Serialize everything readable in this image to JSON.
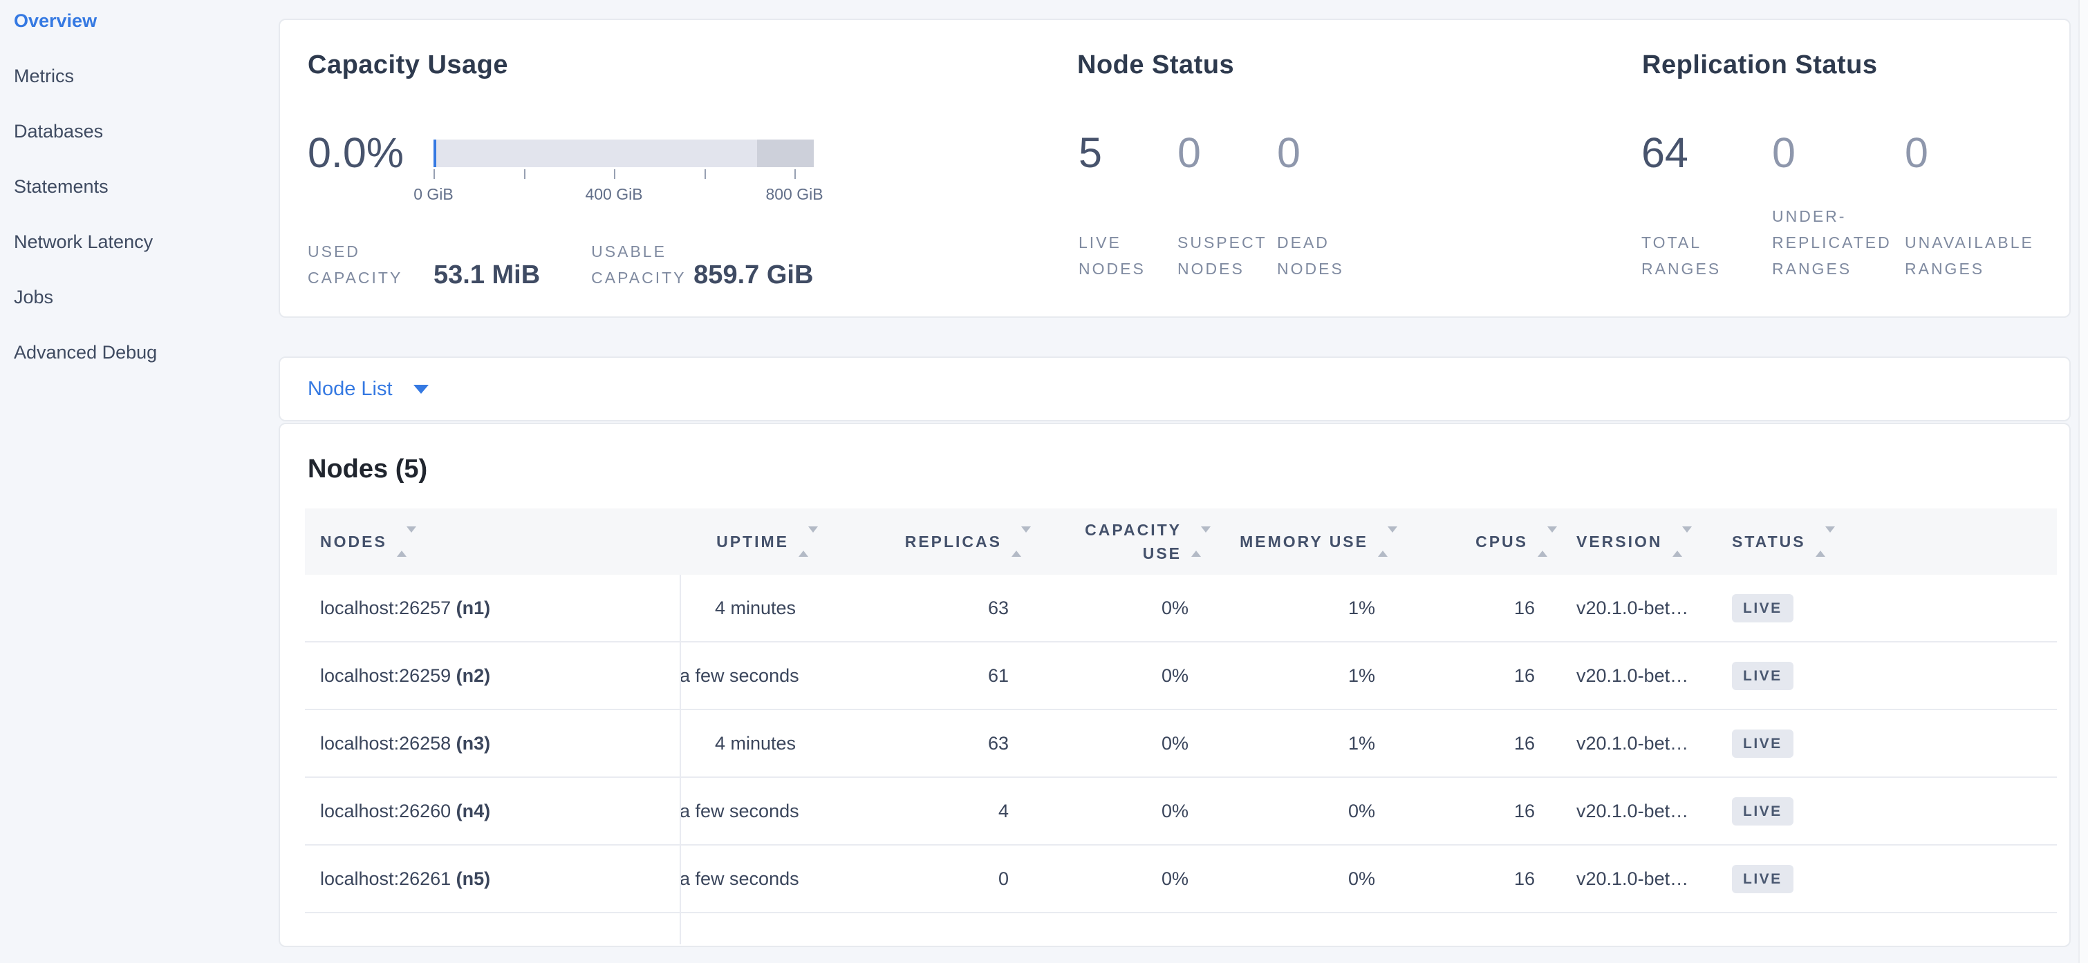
{
  "colors": {
    "accent_blue": "#3579e2",
    "text_dark": "#47536c",
    "text_muted": "#7f8aa0",
    "badge_bg": "#e5e8ef",
    "bar_track": "#e2e4ed",
    "bar_reserved": "#cdd0da"
  },
  "sidebar": {
    "items": [
      {
        "label": "Overview",
        "active": true
      },
      {
        "label": "Metrics",
        "active": false
      },
      {
        "label": "Databases",
        "active": false
      },
      {
        "label": "Statements",
        "active": false
      },
      {
        "label": "Network Latency",
        "active": false
      },
      {
        "label": "Jobs",
        "active": false
      },
      {
        "label": "Advanced Debug",
        "active": false
      }
    ]
  },
  "summary": {
    "capacity": {
      "title": "Capacity Usage",
      "percent_used": "0.0%",
      "gauge": {
        "tick_labels": [
          "0 GiB",
          "400 GiB",
          "800 GiB"
        ],
        "tick_count": 5,
        "axis_unit": "GiB",
        "reserved_segment_percent": 15
      },
      "stats": [
        {
          "label": "USED CAPACITY",
          "value": "53.1 MiB"
        },
        {
          "label": "USABLE CAPACITY",
          "value": "859.7 GiB"
        }
      ]
    },
    "node_status": {
      "title": "Node Status",
      "stats": [
        {
          "value": "5",
          "label": "LIVE NODES",
          "primary": true
        },
        {
          "value": "0",
          "label": "SUSPECT NODES",
          "primary": false
        },
        {
          "value": "0",
          "label": "DEAD NODES",
          "primary": false
        }
      ]
    },
    "replication_status": {
      "title": "Replication Status",
      "stats": [
        {
          "value": "64",
          "label": "TOTAL RANGES",
          "primary": true
        },
        {
          "value": "0",
          "label": "UNDER-REPLICATED RANGES",
          "primary": false
        },
        {
          "value": "0",
          "label": "UNAVAILABLE RANGES",
          "primary": false
        }
      ]
    }
  },
  "node_list": {
    "label": "Node List"
  },
  "nodes_table": {
    "title": "Nodes (5)",
    "headers": [
      {
        "label": "NODES",
        "align": "left"
      },
      {
        "label": "UPTIME",
        "align": "right"
      },
      {
        "label": "REPLICAS",
        "align": "right"
      },
      {
        "label": "CAPACITY USE",
        "align": "right"
      },
      {
        "label": "MEMORY USE",
        "align": "right"
      },
      {
        "label": "CPUS",
        "align": "right"
      },
      {
        "label": "VERSION",
        "align": "left"
      },
      {
        "label": "STATUS",
        "align": "left"
      }
    ],
    "rows": [
      {
        "address": "localhost:26257",
        "id": "(n1)",
        "uptime": "4 minutes",
        "replicas": "63",
        "capacity_use": "0%",
        "memory_use": "1%",
        "cpus": "16",
        "version": "v20.1.0-bet…",
        "status": "LIVE"
      },
      {
        "address": "localhost:26259",
        "id": "(n2)",
        "uptime": "a few seconds",
        "replicas": "61",
        "capacity_use": "0%",
        "memory_use": "1%",
        "cpus": "16",
        "version": "v20.1.0-bet…",
        "status": "LIVE"
      },
      {
        "address": "localhost:26258",
        "id": "(n3)",
        "uptime": "4 minutes",
        "replicas": "63",
        "capacity_use": "0%",
        "memory_use": "1%",
        "cpus": "16",
        "version": "v20.1.0-bet…",
        "status": "LIVE"
      },
      {
        "address": "localhost:26260",
        "id": "(n4)",
        "uptime": "a few seconds",
        "replicas": "4",
        "capacity_use": "0%",
        "memory_use": "0%",
        "cpus": "16",
        "version": "v20.1.0-bet…",
        "status": "LIVE"
      },
      {
        "address": "localhost:26261",
        "id": "(n5)",
        "uptime": "a few seconds",
        "replicas": "0",
        "capacity_use": "0%",
        "memory_use": "0%",
        "cpus": "16",
        "version": "v20.1.0-bet…",
        "status": "LIVE"
      }
    ]
  }
}
